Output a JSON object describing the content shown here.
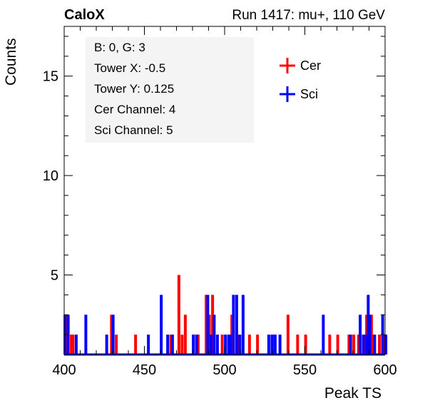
{
  "chart_data": {
    "type": "histogram",
    "title_left": "CaloX",
    "title_right": "Run 1417: mu+, 110 GeV",
    "xlabel": "Peak TS",
    "ylabel": "Counts",
    "xlim": [
      400,
      600
    ],
    "ylim": [
      1,
      17.5
    ],
    "x_ticks": [
      400,
      450,
      500,
      550,
      600
    ],
    "y_ticks": [
      5,
      10,
      15
    ],
    "info_lines": [
      "B: 0, G: 3",
      "Tower X: -0.5",
      "Tower Y: 0.125",
      "Cer Channel: 4",
      "Sci Channel: 5"
    ],
    "series": [
      {
        "name": "Cer",
        "color": "#ff0000",
        "points": [
          [
            401,
            3
          ],
          [
            404,
            2
          ],
          [
            405,
            2
          ],
          [
            410,
            1
          ],
          [
            429,
            3
          ],
          [
            432,
            2
          ],
          [
            444,
            2
          ],
          [
            458,
            1
          ],
          [
            466,
            2
          ],
          [
            471,
            5
          ],
          [
            473,
            2
          ],
          [
            475,
            3
          ],
          [
            478,
            1
          ],
          [
            483,
            2
          ],
          [
            488,
            4
          ],
          [
            490,
            3
          ],
          [
            492,
            4
          ],
          [
            498,
            2
          ],
          [
            504,
            3
          ],
          [
            508,
            2
          ],
          [
            512,
            1
          ],
          [
            515,
            2
          ],
          [
            520,
            2
          ],
          [
            530,
            2
          ],
          [
            539,
            3
          ],
          [
            545,
            2
          ],
          [
            550,
            2
          ],
          [
            556,
            1
          ],
          [
            565,
            2
          ],
          [
            570,
            2
          ],
          [
            575,
            1
          ],
          [
            577,
            2
          ],
          [
            580,
            2
          ],
          [
            583,
            2
          ],
          [
            587,
            2
          ],
          [
            588,
            3
          ],
          [
            591,
            3
          ],
          [
            592,
            2
          ],
          [
            596,
            2
          ],
          [
            599,
            2
          ]
        ]
      },
      {
        "name": "Sci",
        "color": "#0000ff",
        "points": [
          [
            400,
            3
          ],
          [
            402,
            3
          ],
          [
            404,
            1
          ],
          [
            407,
            2
          ],
          [
            413,
            3
          ],
          [
            426,
            2
          ],
          [
            430,
            3
          ],
          [
            435,
            1
          ],
          [
            440,
            1
          ],
          [
            445,
            1
          ],
          [
            448,
            1
          ],
          [
            452,
            2
          ],
          [
            460,
            4
          ],
          [
            464,
            2
          ],
          [
            467,
            2
          ],
          [
            470,
            1
          ],
          [
            480,
            2
          ],
          [
            482,
            2
          ],
          [
            486,
            1
          ],
          [
            489,
            4
          ],
          [
            491,
            2
          ],
          [
            493,
            3
          ],
          [
            495,
            2
          ],
          [
            500,
            2
          ],
          [
            502,
            2
          ],
          [
            503,
            2
          ],
          [
            505,
            4
          ],
          [
            507,
            4
          ],
          [
            509,
            2
          ],
          [
            511,
            4
          ],
          [
            513,
            1
          ],
          [
            518,
            1
          ],
          [
            523,
            1
          ],
          [
            527,
            2
          ],
          [
            529,
            2
          ],
          [
            531,
            2
          ],
          [
            534,
            2
          ],
          [
            536,
            1
          ],
          [
            540,
            1
          ],
          [
            545,
            1
          ],
          [
            555,
            1
          ],
          [
            561,
            3
          ],
          [
            568,
            1
          ],
          [
            573,
            1
          ],
          [
            578,
            2
          ],
          [
            582,
            1
          ],
          [
            584,
            3
          ],
          [
            586,
            2
          ],
          [
            588,
            2
          ],
          [
            589,
            4
          ],
          [
            590,
            3
          ],
          [
            593,
            2
          ],
          [
            595,
            1
          ],
          [
            598,
            3
          ],
          [
            600,
            2
          ]
        ]
      }
    ]
  }
}
